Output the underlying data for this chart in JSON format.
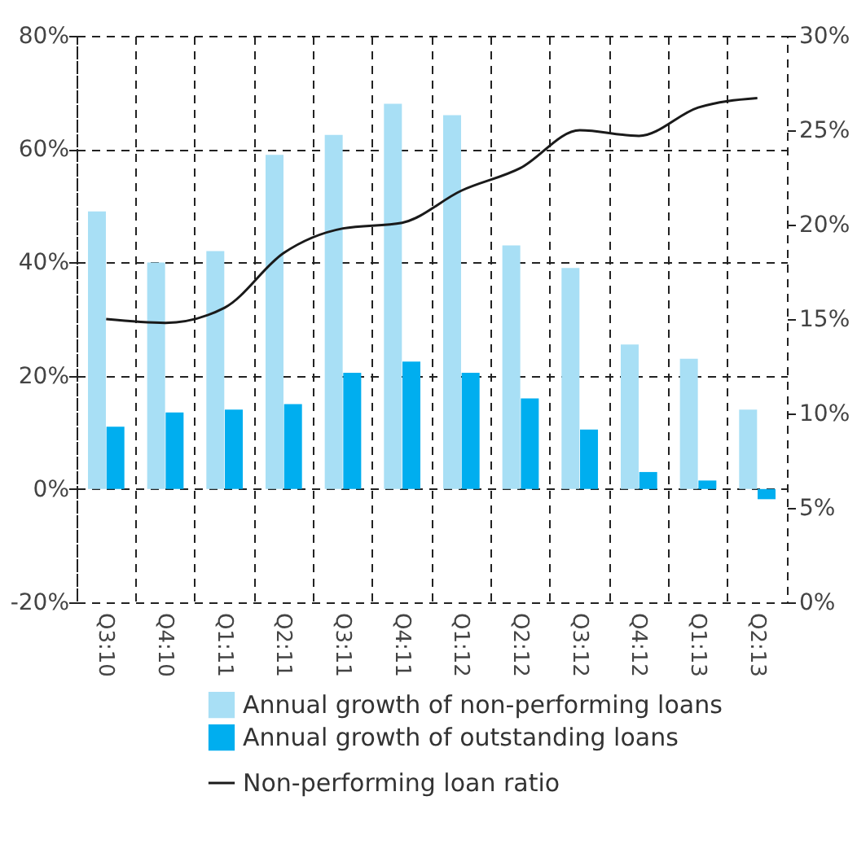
{
  "chart_data": {
    "type": "bar",
    "categories": [
      "Q3:10",
      "Q4:10",
      "Q1:11",
      "Q2:11",
      "Q3:11",
      "Q4:11",
      "Q1:12",
      "Q2:12",
      "Q3:12",
      "Q4:12",
      "Q1:13",
      "Q2:13"
    ],
    "series": [
      {
        "name": "Annual growth of non-performing loans",
        "color": "#a8dff5",
        "values": [
          49,
          40,
          42,
          59,
          62.5,
          68,
          66,
          43,
          39,
          25.5,
          23,
          14
        ]
      },
      {
        "name": "Annual growth of outstanding loans",
        "color": "#00aeef",
        "values": [
          11,
          13.5,
          14,
          15,
          20.5,
          22.5,
          20.5,
          16,
          10.5,
          3,
          1.5,
          -1.8
        ]
      },
      {
        "name": "Non-performing loan ratio",
        "type": "line",
        "axis": "y2",
        "color": "#1a1a1a",
        "values": [
          15,
          14.8,
          15.6,
          18.5,
          19.8,
          20.1,
          21.8,
          23,
          25,
          24.7,
          26.2,
          26.7
        ]
      }
    ],
    "ylim": [
      -20,
      80
    ],
    "yticks": [
      {
        "value": -20,
        "label": "-20%"
      },
      {
        "value": 0,
        "label": "0%"
      },
      {
        "value": 20,
        "label": "20%"
      },
      {
        "value": 40,
        "label": "40%"
      },
      {
        "value": 60,
        "label": "60%"
      },
      {
        "value": 80,
        "label": "80%"
      }
    ],
    "y2lim": [
      0,
      30
    ],
    "y2ticks": [
      {
        "value": 0,
        "label": "0%"
      },
      {
        "value": 5,
        "label": "5%"
      },
      {
        "value": 10,
        "label": "10%"
      },
      {
        "value": 15,
        "label": "15%"
      },
      {
        "value": 20,
        "label": "20%"
      },
      {
        "value": 25,
        "label": "25%"
      },
      {
        "value": 30,
        "label": "30%"
      }
    ],
    "grid": true,
    "legend": "bottom",
    "line_style": "solid"
  }
}
